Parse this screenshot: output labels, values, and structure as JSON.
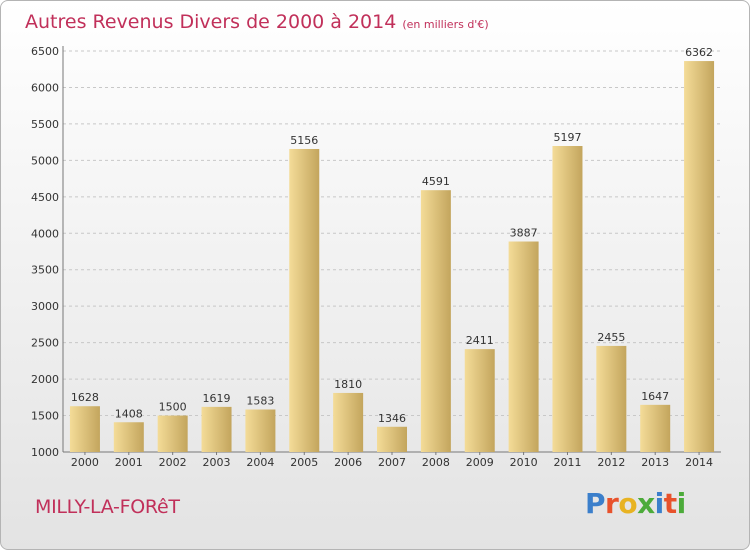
{
  "title": "Autres Revenus Divers de 2000 à 2014",
  "subtitle": "(en milliers d'€)",
  "location": "MILLY-LA-FORêT",
  "logo": {
    "letters": [
      "P",
      "r",
      "o",
      "x",
      "i",
      "t",
      "i"
    ],
    "colors": [
      "#3b7fcb",
      "#e8522c",
      "#e8b322",
      "#4cab3a",
      "#3b7fcb",
      "#e8522c",
      "#4cab3a"
    ]
  },
  "colors": {
    "bar_light": "#f4dc98",
    "bar_dark": "#c3a55d",
    "title": "#c1305a",
    "grid": "#c8c8c8"
  },
  "chart_data": {
    "type": "bar",
    "categories": [
      "2000",
      "2001",
      "2002",
      "2003",
      "2004",
      "2005",
      "2006",
      "2007",
      "2008",
      "2009",
      "2010",
      "2011",
      "2012",
      "2013",
      "2014"
    ],
    "values": [
      1628,
      1408,
      1500,
      1619,
      1583,
      5156,
      1810,
      1346,
      4591,
      2411,
      3887,
      5197,
      2455,
      1647,
      6362
    ],
    "value_labels": [
      "1628",
      "1408",
      "1500",
      "1619",
      "1583",
      "5156",
      "1810",
      "1346",
      "4591",
      "2411",
      "3887",
      "5197",
      "2455",
      "1647",
      "6362"
    ],
    "yticks": [
      "1000",
      "1500",
      "2000",
      "2500",
      "3000",
      "3500",
      "4000",
      "4500",
      "5000",
      "5500",
      "6000",
      "6500"
    ],
    "ylim": [
      1000,
      6500
    ],
    "grid": true,
    "legend": "none"
  }
}
